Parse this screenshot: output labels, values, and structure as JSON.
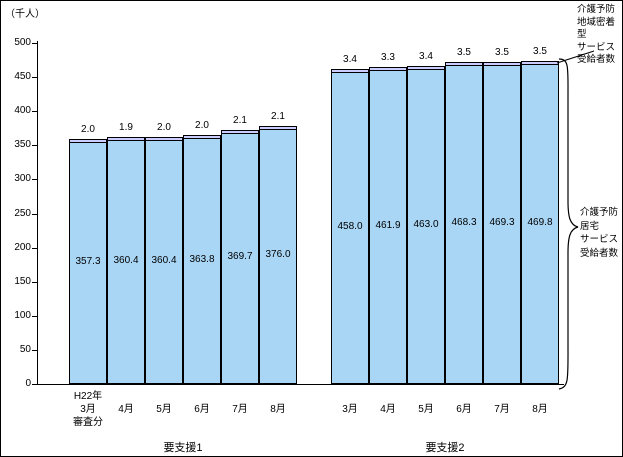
{
  "unit_label": "（千人）",
  "chart_data": {
    "type": "bar",
    "stacked": true,
    "ylabel": "（千人）",
    "ylim": [
      0,
      500
    ],
    "ytick_step": 50,
    "grid": false,
    "legend_position": "right-annotations",
    "groups": [
      {
        "label": "要支援1",
        "categories": [
          "H22年\n3月\n審査分",
          "4月",
          "5月",
          "6月",
          "7月",
          "8月"
        ],
        "series": [
          {
            "name": "介護予防居宅サービス受給者数",
            "values": [
              357.3,
              360.4,
              360.4,
              363.8,
              369.7,
              376.0
            ]
          },
          {
            "name": "介護予防地域密着型サービス受給者数",
            "values": [
              2.0,
              1.9,
              2.0,
              2.0,
              2.1,
              2.1
            ]
          }
        ]
      },
      {
        "label": "要支援2",
        "categories": [
          "3月",
          "4月",
          "5月",
          "6月",
          "7月",
          "8月"
        ],
        "series": [
          {
            "name": "介護予防居宅サービス受給者数",
            "values": [
              458.0,
              461.9,
              463.0,
              468.3,
              469.3,
              469.8
            ]
          },
          {
            "name": "介護予防地域密着型サービス受給者数",
            "values": [
              3.4,
              3.3,
              3.4,
              3.5,
              3.5,
              3.5
            ]
          }
        ]
      }
    ],
    "colors": {
      "bar_main": "#A9D6F5",
      "bar_top": "#CCCCFF",
      "border": "#000000"
    }
  },
  "annotations": {
    "top_right": "介護予防\n地域密着型\nサービス\n受給者数",
    "mid_right": "介護予防\n居宅\nサービス\n受給者数"
  }
}
